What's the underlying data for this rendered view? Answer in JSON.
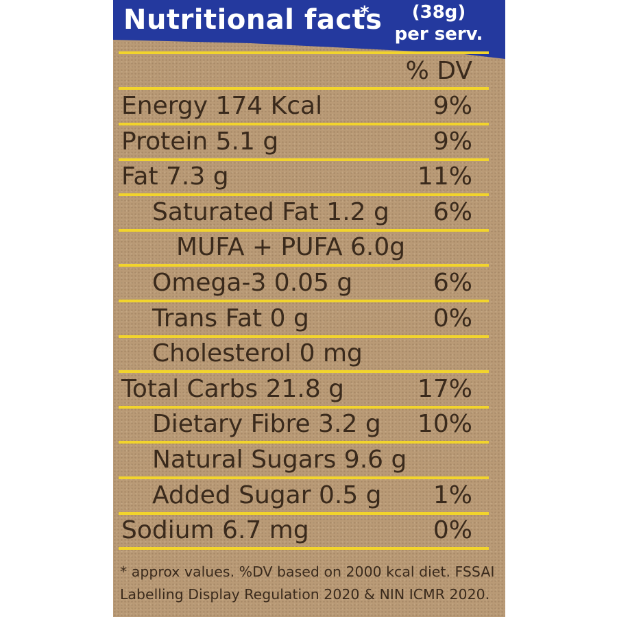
{
  "header": {
    "title": "Nutritional facts",
    "star": "*",
    "serving_amount": "(38g)",
    "serving_label": "per serv."
  },
  "dv_header": "% DV",
  "rows": [
    {
      "label": "Energy 174 Kcal",
      "dv": "9%"
    },
    {
      "label": "Protein 5.1 g",
      "dv": "9%"
    },
    {
      "label": "Fat 7.3 g",
      "dv": "11%"
    },
    {
      "label": "Saturated Fat 1.2 g",
      "dv": "6%"
    },
    {
      "label": "MUFA + PUFA 6.0g",
      "dv": ""
    },
    {
      "label": "Omega-3 0.05 g",
      "dv": "6%"
    },
    {
      "label": "Trans Fat 0 g",
      "dv": "0%"
    },
    {
      "label": "Cholesterol 0 mg",
      "dv": ""
    },
    {
      "label": "Total Carbs 21.8 g",
      "dv": "17%"
    },
    {
      "label": "Dietary Fibre 3.2 g",
      "dv": "10%"
    },
    {
      "label": "Natural Sugars 9.6 g",
      "dv": ""
    },
    {
      "label": "Added Sugar 0.5 g",
      "dv": "1%"
    },
    {
      "label": "Sodium 6.7 mg",
      "dv": "0%"
    }
  ],
  "footnote": {
    "line1": "* approx values. %DV based on 2000 kcal diet. FSSAI",
    "line2": "Labelling Display Regulation 2020 & NIN ICMR 2020."
  },
  "colors": {
    "header_blue": "#24399e",
    "rule_yellow": "#f2d42c",
    "kraft": "#b99a76",
    "text": "#3a2a1c"
  }
}
